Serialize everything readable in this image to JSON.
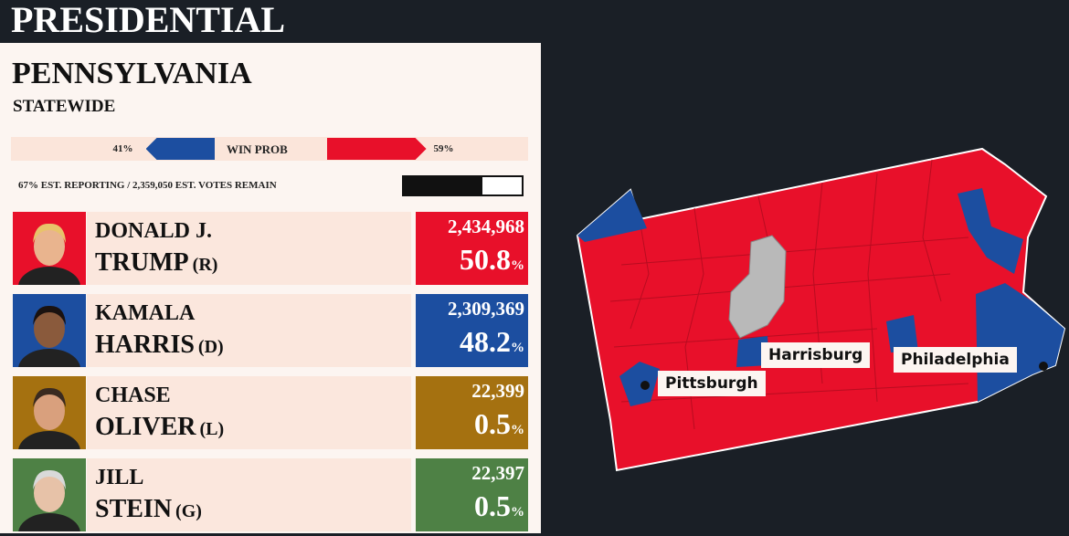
{
  "header": {
    "title": "PRESIDENTIAL"
  },
  "panel": {
    "state": "PENNSYLVANIA",
    "scope": "STATEWIDE"
  },
  "win_prob": {
    "label": "WIN PROB",
    "dem": {
      "value": 41,
      "label": "41%",
      "color": "#1c4ea0"
    },
    "rep": {
      "value": 59,
      "label": "59%",
      "color": "#e8102a"
    }
  },
  "reporting": {
    "value": 67,
    "label": "67% EST. REPORTING / 2,359,050 EST. VOTES REMAIN"
  },
  "candidates": [
    {
      "first": "DONALD J.",
      "last": "TRUMP",
      "party": "(R)",
      "votes": {
        "value": 2434968,
        "label": "2,434,968"
      },
      "pct": 50.8,
      "pct_symbol": "%",
      "color": "#e8102a"
    },
    {
      "first": "KAMALA",
      "last": "HARRIS",
      "party": "(D)",
      "votes": {
        "value": 2309369,
        "label": "2,309,369"
      },
      "pct": 48.2,
      "pct_symbol": "%",
      "color": "#1c4ea0"
    },
    {
      "first": "CHASE",
      "last": "OLIVER",
      "party": "(L)",
      "votes": {
        "value": 22399,
        "label": "22,399"
      },
      "pct": 0.5,
      "pct_symbol": "%",
      "color": "#a57110"
    },
    {
      "first": "JILL",
      "last": "STEIN",
      "party": "(G)",
      "votes": {
        "value": 22397,
        "label": "22,397"
      },
      "pct": 0.5,
      "pct_symbol": "%",
      "color": "#4e8145"
    }
  ],
  "map": {
    "labels": [
      "Harrisburg",
      "Pittsburgh",
      "Philadelphia"
    ]
  }
}
